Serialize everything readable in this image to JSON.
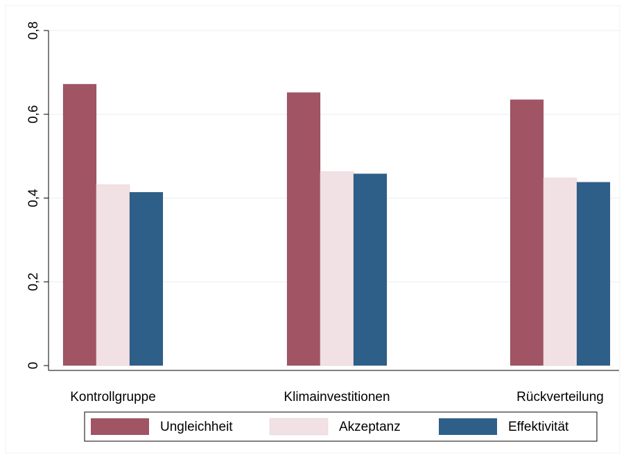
{
  "chart_data": {
    "type": "bar",
    "categories": [
      "Kontrollgruppe",
      "Klimainvestitionen",
      "Rückverteilung"
    ],
    "series": [
      {
        "name": "Ungleichheit",
        "values": [
          0.672,
          0.652,
          0.635
        ],
        "color": "#a05464"
      },
      {
        "name": "Akzeptanz",
        "values": [
          0.432,
          0.463,
          0.448
        ],
        "color": "#f1e1e4"
      },
      {
        "name": "Effektivität",
        "values": [
          0.414,
          0.458,
          0.438
        ],
        "color": "#2e5f89"
      }
    ],
    "ylim": [
      0,
      0.8
    ],
    "yticks": [
      0,
      0.2,
      0.4,
      0.6,
      0.8
    ],
    "ytick_labels": [
      "0",
      "0,2",
      "0,4",
      "0,6",
      "0,8"
    ],
    "title": "",
    "xlabel": "",
    "ylabel": "",
    "grid": true,
    "legend": "bottom"
  }
}
